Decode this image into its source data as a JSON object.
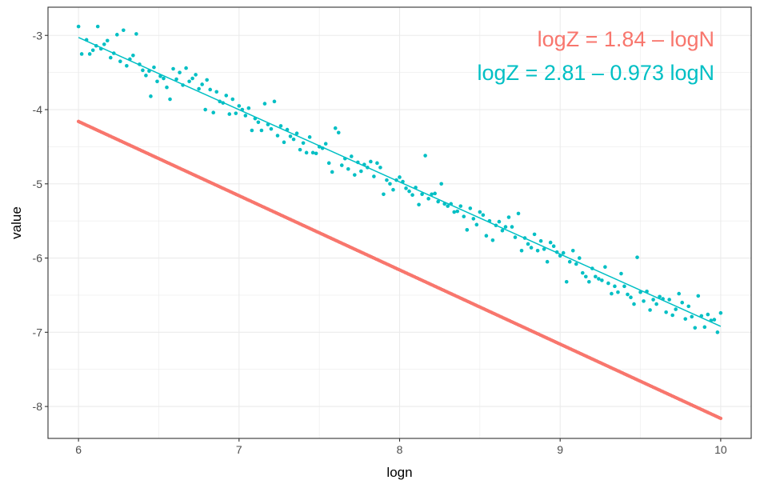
{
  "chart_data": {
    "type": "scatter",
    "title": "",
    "xlabel": "logn",
    "ylabel": "value",
    "xlim": [
      5.81,
      10.19
    ],
    "ylim": [
      -8.43,
      -2.62
    ],
    "grid": true,
    "legend": "none",
    "x_ticks": [
      {
        "value": 6,
        "label": "6"
      },
      {
        "value": 7,
        "label": "7"
      },
      {
        "value": 8,
        "label": "8"
      },
      {
        "value": 9,
        "label": "9"
      },
      {
        "value": 10,
        "label": "10"
      }
    ],
    "y_ticks": [
      {
        "value": -3,
        "label": "-3"
      },
      {
        "value": -4,
        "label": "-4"
      },
      {
        "value": -5,
        "label": "-5"
      },
      {
        "value": -6,
        "label": "-6"
      },
      {
        "value": -7,
        "label": "-7"
      },
      {
        "value": -8,
        "label": "-8"
      }
    ],
    "annotations": [
      {
        "text": "logZ = 1.84 –  logN",
        "color": "#F8766D"
      },
      {
        "text": "logZ = 2.81 – 0.973 logN",
        "color": "#00BFC4"
      }
    ],
    "series": [
      {
        "color": "#F8766D",
        "style": "dense points",
        "x_range": [
          6,
          10
        ],
        "point_count": 400,
        "fit": {
          "intercept": 1.84,
          "slope": -1.0
        }
      },
      {
        "color": "#00BFC4",
        "style": "points with fitted line",
        "fit": {
          "intercept": 2.81,
          "slope": -0.973,
          "x_range": [
            6,
            10
          ]
        },
        "points": [
          [
            6.0,
            -2.88
          ],
          [
            6.02,
            -3.25
          ],
          [
            6.05,
            -3.06
          ],
          [
            6.07,
            -3.25
          ],
          [
            6.09,
            -3.2
          ],
          [
            6.11,
            -3.14
          ],
          [
            6.12,
            -2.88
          ],
          [
            6.14,
            -3.18
          ],
          [
            6.16,
            -3.12
          ],
          [
            6.18,
            -3.07
          ],
          [
            6.2,
            -3.3
          ],
          [
            6.22,
            -3.24
          ],
          [
            6.24,
            -2.99
          ],
          [
            6.26,
            -3.35
          ],
          [
            6.28,
            -2.93
          ],
          [
            6.3,
            -3.41
          ],
          [
            6.32,
            -3.32
          ],
          [
            6.34,
            -3.27
          ],
          [
            6.36,
            -2.98
          ],
          [
            6.38,
            -3.39
          ],
          [
            6.4,
            -3.47
          ],
          [
            6.42,
            -3.54
          ],
          [
            6.44,
            -3.48
          ],
          [
            6.45,
            -3.82
          ],
          [
            6.47,
            -3.43
          ],
          [
            6.49,
            -3.62
          ],
          [
            6.51,
            -3.55
          ],
          [
            6.53,
            -3.58
          ],
          [
            6.55,
            -3.7
          ],
          [
            6.57,
            -3.86
          ],
          [
            6.59,
            -3.45
          ],
          [
            6.61,
            -3.59
          ],
          [
            6.63,
            -3.5
          ],
          [
            6.65,
            -3.67
          ],
          [
            6.67,
            -3.44
          ],
          [
            6.69,
            -3.62
          ],
          [
            6.71,
            -3.58
          ],
          [
            6.73,
            -3.53
          ],
          [
            6.75,
            -3.72
          ],
          [
            6.77,
            -3.66
          ],
          [
            6.79,
            -4.0
          ],
          [
            6.8,
            -3.6
          ],
          [
            6.82,
            -3.73
          ],
          [
            6.84,
            -4.04
          ],
          [
            6.86,
            -3.76
          ],
          [
            6.88,
            -3.89
          ],
          [
            6.9,
            -3.91
          ],
          [
            6.92,
            -3.81
          ],
          [
            6.94,
            -4.06
          ],
          [
            6.96,
            -3.86
          ],
          [
            6.98,
            -4.05
          ],
          [
            7.0,
            -3.95
          ],
          [
            7.02,
            -4.0
          ],
          [
            7.04,
            -4.08
          ],
          [
            7.06,
            -3.98
          ],
          [
            7.08,
            -4.28
          ],
          [
            7.1,
            -4.12
          ],
          [
            7.12,
            -4.17
          ],
          [
            7.14,
            -4.28
          ],
          [
            7.16,
            -3.92
          ],
          [
            7.18,
            -4.2
          ],
          [
            7.2,
            -4.26
          ],
          [
            7.22,
            -3.89
          ],
          [
            7.24,
            -4.35
          ],
          [
            7.26,
            -4.22
          ],
          [
            7.28,
            -4.44
          ],
          [
            7.3,
            -4.27
          ],
          [
            7.32,
            -4.36
          ],
          [
            7.34,
            -4.4
          ],
          [
            7.36,
            -4.32
          ],
          [
            7.38,
            -4.54
          ],
          [
            7.4,
            -4.45
          ],
          [
            7.42,
            -4.58
          ],
          [
            7.44,
            -4.37
          ],
          [
            7.46,
            -4.58
          ],
          [
            7.48,
            -4.59
          ],
          [
            7.5,
            -4.5
          ],
          [
            7.52,
            -4.52
          ],
          [
            7.54,
            -4.46
          ],
          [
            7.56,
            -4.72
          ],
          [
            7.58,
            -4.84
          ],
          [
            7.6,
            -4.25
          ],
          [
            7.62,
            -4.31
          ],
          [
            7.64,
            -4.75
          ],
          [
            7.66,
            -4.66
          ],
          [
            7.68,
            -4.8
          ],
          [
            7.7,
            -4.63
          ],
          [
            7.72,
            -4.88
          ],
          [
            7.74,
            -4.71
          ],
          [
            7.76,
            -4.83
          ],
          [
            7.78,
            -4.74
          ],
          [
            7.8,
            -4.78
          ],
          [
            7.82,
            -4.7
          ],
          [
            7.84,
            -4.9
          ],
          [
            7.86,
            -4.72
          ],
          [
            7.88,
            -4.78
          ],
          [
            7.9,
            -5.14
          ],
          [
            7.92,
            -4.95
          ],
          [
            7.94,
            -5.0
          ],
          [
            7.96,
            -5.08
          ],
          [
            7.98,
            -4.95
          ],
          [
            8.0,
            -4.91
          ],
          [
            8.02,
            -4.97
          ],
          [
            8.04,
            -5.06
          ],
          [
            8.06,
            -5.1
          ],
          [
            8.08,
            -5.15
          ],
          [
            8.1,
            -5.05
          ],
          [
            8.12,
            -5.28
          ],
          [
            8.14,
            -5.14
          ],
          [
            8.16,
            -4.62
          ],
          [
            8.18,
            -5.2
          ],
          [
            8.2,
            -5.14
          ],
          [
            8.22,
            -5.13
          ],
          [
            8.24,
            -5.24
          ],
          [
            8.26,
            -5.0
          ],
          [
            8.28,
            -5.27
          ],
          [
            8.3,
            -5.3
          ],
          [
            8.32,
            -5.27
          ],
          [
            8.34,
            -5.38
          ],
          [
            8.36,
            -5.37
          ],
          [
            8.38,
            -5.3
          ],
          [
            8.4,
            -5.44
          ],
          [
            8.42,
            -5.62
          ],
          [
            8.44,
            -5.33
          ],
          [
            8.46,
            -5.47
          ],
          [
            8.48,
            -5.55
          ],
          [
            8.5,
            -5.38
          ],
          [
            8.52,
            -5.42
          ],
          [
            8.54,
            -5.7
          ],
          [
            8.56,
            -5.5
          ],
          [
            8.58,
            -5.76
          ],
          [
            8.6,
            -5.56
          ],
          [
            8.62,
            -5.51
          ],
          [
            8.64,
            -5.63
          ],
          [
            8.66,
            -5.58
          ],
          [
            8.68,
            -5.45
          ],
          [
            8.7,
            -5.58
          ],
          [
            8.72,
            -5.72
          ],
          [
            8.74,
            -5.4
          ],
          [
            8.76,
            -5.9
          ],
          [
            8.78,
            -5.73
          ],
          [
            8.8,
            -5.81
          ],
          [
            8.82,
            -5.86
          ],
          [
            8.84,
            -5.68
          ],
          [
            8.86,
            -5.9
          ],
          [
            8.88,
            -5.77
          ],
          [
            8.9,
            -5.88
          ],
          [
            8.92,
            -6.05
          ],
          [
            8.94,
            -5.79
          ],
          [
            8.96,
            -5.84
          ],
          [
            8.98,
            -5.92
          ],
          [
            9.0,
            -5.97
          ],
          [
            9.02,
            -5.93
          ],
          [
            9.04,
            -6.32
          ],
          [
            9.06,
            -6.05
          ],
          [
            9.08,
            -5.9
          ],
          [
            9.1,
            -6.08
          ],
          [
            9.12,
            -6.0
          ],
          [
            9.14,
            -6.2
          ],
          [
            9.16,
            -6.25
          ],
          [
            9.18,
            -6.32
          ],
          [
            9.2,
            -6.14
          ],
          [
            9.22,
            -6.25
          ],
          [
            9.24,
            -6.28
          ],
          [
            9.26,
            -6.3
          ],
          [
            9.28,
            -6.12
          ],
          [
            9.3,
            -6.34
          ],
          [
            9.32,
            -6.48
          ],
          [
            9.34,
            -6.38
          ],
          [
            9.36,
            -6.46
          ],
          [
            9.38,
            -6.21
          ],
          [
            9.4,
            -6.38
          ],
          [
            9.42,
            -6.49
          ],
          [
            9.44,
            -6.53
          ],
          [
            9.46,
            -6.62
          ],
          [
            9.48,
            -5.99
          ],
          [
            9.5,
            -6.46
          ],
          [
            9.52,
            -6.58
          ],
          [
            9.54,
            -6.45
          ],
          [
            9.56,
            -6.7
          ],
          [
            9.58,
            -6.56
          ],
          [
            9.6,
            -6.62
          ],
          [
            9.62,
            -6.52
          ],
          [
            9.64,
            -6.55
          ],
          [
            9.66,
            -6.73
          ],
          [
            9.68,
            -6.56
          ],
          [
            9.7,
            -6.77
          ],
          [
            9.72,
            -6.69
          ],
          [
            9.74,
            -6.48
          ],
          [
            9.76,
            -6.6
          ],
          [
            9.78,
            -6.82
          ],
          [
            9.8,
            -6.65
          ],
          [
            9.82,
            -6.79
          ],
          [
            9.84,
            -6.94
          ],
          [
            9.86,
            -6.51
          ],
          [
            9.88,
            -6.78
          ],
          [
            9.9,
            -6.93
          ],
          [
            9.92,
            -6.76
          ],
          [
            9.94,
            -6.84
          ],
          [
            9.96,
            -6.83
          ],
          [
            9.98,
            -7.0
          ],
          [
            10.0,
            -6.74
          ]
        ]
      }
    ]
  }
}
